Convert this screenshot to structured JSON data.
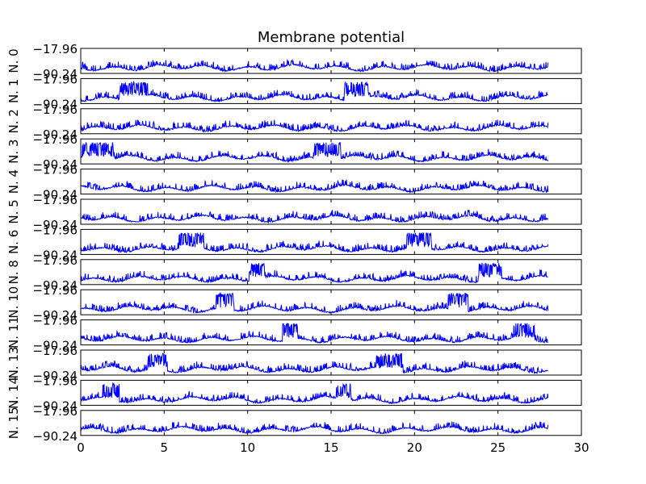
{
  "chart_data": {
    "type": "line",
    "title": "Membrane potential",
    "x_ticks": [
      "0",
      "5",
      "10",
      "15",
      "20",
      "25",
      "30"
    ],
    "xlim": [
      0,
      30
    ],
    "ylim": [
      -90.24,
      -17.96
    ],
    "ytick_labels": [
      "−17.96",
      "−90.24"
    ],
    "line_color": "#0000ff",
    "grid": false,
    "legend": "none",
    "series": [
      {
        "name": "N. 0",
        "bursts": []
      },
      {
        "name": "N. 1",
        "bursts": [
          [
            2.3,
            4.0
          ],
          [
            15.8,
            17.3
          ]
        ]
      },
      {
        "name": "N. 2",
        "bursts": []
      },
      {
        "name": "N. 3",
        "bursts": [
          [
            0.1,
            2.0
          ],
          [
            14.0,
            15.6
          ]
        ]
      },
      {
        "name": "N. 4",
        "bursts": []
      },
      {
        "name": "N. 5",
        "bursts": []
      },
      {
        "name": "N. 6",
        "bursts": [
          [
            5.9,
            7.4
          ],
          [
            19.5,
            21.0
          ]
        ]
      },
      {
        "name": "N. 8",
        "bursts": [
          [
            10.1,
            11.1
          ],
          [
            23.8,
            25.2
          ]
        ]
      },
      {
        "name": "N. 10",
        "bursts": [
          [
            8.1,
            9.2
          ],
          [
            22.0,
            23.2
          ]
        ]
      },
      {
        "name": "N. 11",
        "bursts": [
          [
            12.1,
            13.0
          ],
          [
            25.9,
            27.2
          ]
        ]
      },
      {
        "name": "N. 13",
        "bursts": [
          [
            4.0,
            5.2
          ],
          [
            17.7,
            19.3
          ]
        ]
      },
      {
        "name": "N. 14",
        "bursts": [
          [
            1.3,
            2.3
          ],
          [
            15.3,
            16.2
          ]
        ]
      },
      {
        "name": "N. 15",
        "bursts": []
      }
    ]
  }
}
